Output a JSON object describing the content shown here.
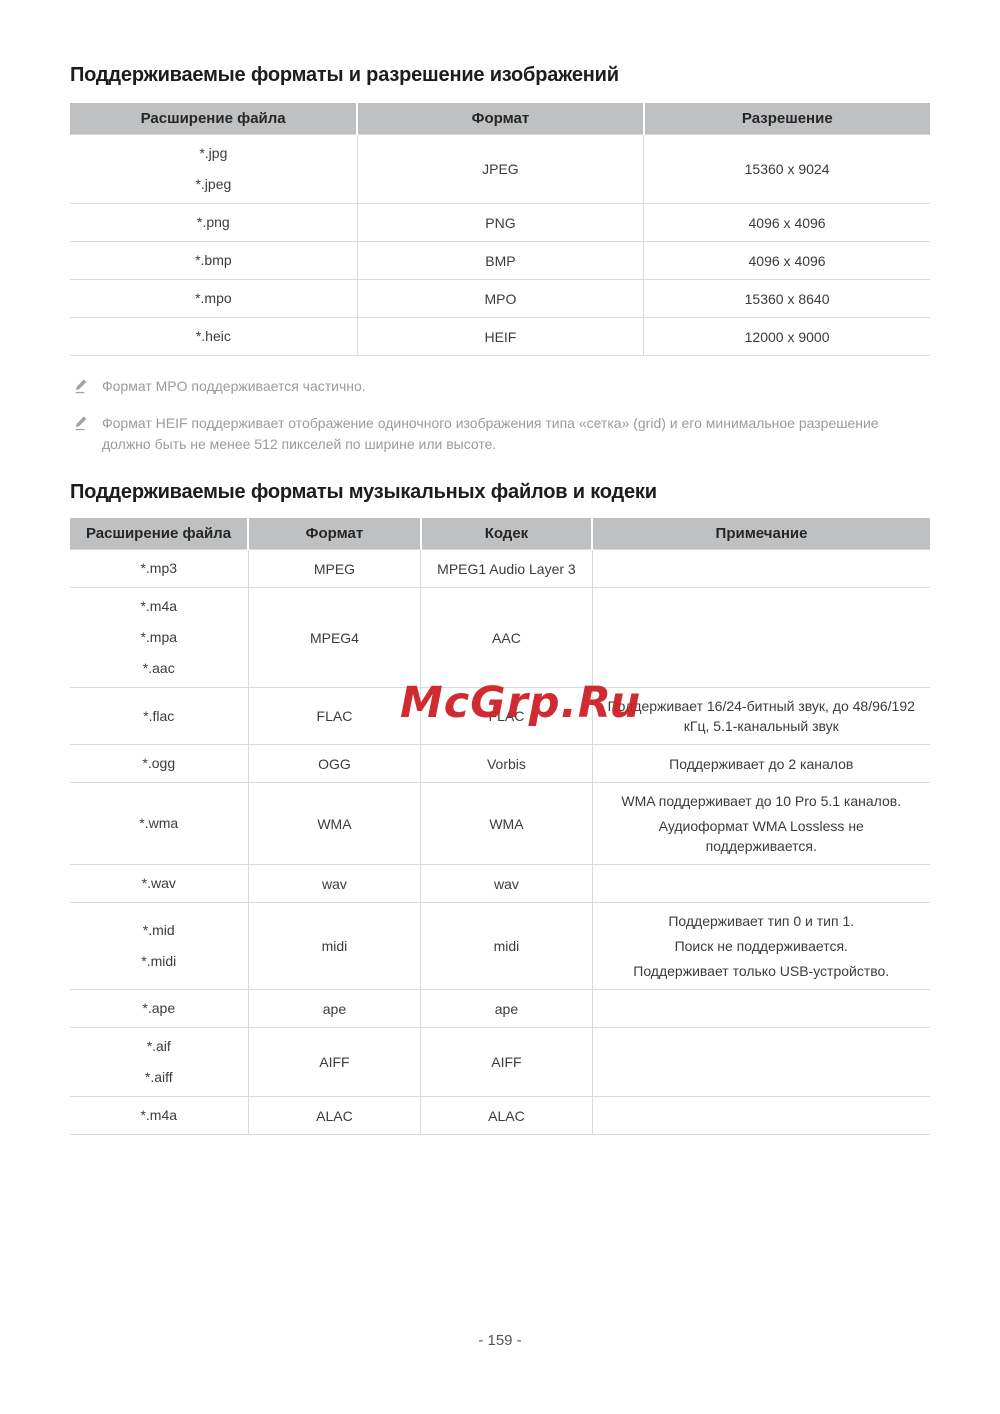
{
  "page": {
    "footer": "- 159 -"
  },
  "watermark": {
    "text": "McGrp.Ru",
    "color": "#ce2026"
  },
  "colors": {
    "table_header_bg": "#bfc0c2",
    "table_border": "#d9dadb",
    "note_text": "#9b9b9b"
  },
  "sections": {
    "images": {
      "title": "Поддерживаемые форматы и разрешение изображений",
      "table": {
        "headers": [
          "Расширение файла",
          "Формат",
          "Разрешение"
        ],
        "note_column": false,
        "rows": [
          {
            "ext": [
              "*.jpg",
              "*.jpeg"
            ],
            "cells": [
              "JPEG",
              "15360 x 9024"
            ]
          },
          {
            "ext": [
              "*.png"
            ],
            "cells": [
              "PNG",
              "4096 x 4096"
            ]
          },
          {
            "ext": [
              "*.bmp"
            ],
            "cells": [
              "BMP",
              "4096 x 4096"
            ]
          },
          {
            "ext": [
              "*.mpo"
            ],
            "cells": [
              "MPO",
              "15360 x 8640"
            ]
          },
          {
            "ext": [
              "*.heic"
            ],
            "cells": [
              "HEIF",
              "12000 x 9000"
            ]
          }
        ]
      },
      "notes": [
        "Формат MPO поддерживается частично.",
        "Формат HEIF поддерживает отображение одиночного изображения типа «сетка» (grid) и его минимальное разрешение должно быть не менее 512 пикселей по ширине или высоте."
      ],
      "note_icon": "pencil-icon"
    },
    "music": {
      "title": "Поддерживаемые форматы музыкальных файлов и кодеки",
      "table": {
        "headers": [
          "Расширение файла",
          "Формат",
          "Кодек",
          "Примечание"
        ],
        "note_column": true,
        "rows": [
          {
            "ext": [
              "*.mp3"
            ],
            "cells": [
              "MPEG",
              "MPEG1 Audio Layer 3"
            ],
            "note": []
          },
          {
            "ext": [
              "*.m4a",
              "*.mpa",
              "*.aac"
            ],
            "cells": [
              "MPEG4",
              "AAC"
            ],
            "note": []
          },
          {
            "ext": [
              "*.flac"
            ],
            "cells": [
              "FLAC",
              "FLAC"
            ],
            "note": [
              "Поддерживает 16/24-битный звук, до 48/96/192 кГц, 5.1-канальный звук"
            ]
          },
          {
            "ext": [
              "*.ogg"
            ],
            "cells": [
              "OGG",
              "Vorbis"
            ],
            "note": [
              "Поддерживает до 2 каналов"
            ]
          },
          {
            "ext": [
              "*.wma"
            ],
            "cells": [
              "WMA",
              "WMA"
            ],
            "note": [
              "WMA поддерживает до 10 Pro 5.1 каналов.",
              "Аудиоформат WMA Lossless не поддерживается."
            ]
          },
          {
            "ext": [
              "*.wav"
            ],
            "cells": [
              "wav",
              "wav"
            ],
            "note": []
          },
          {
            "ext": [
              "*.mid",
              "*.midi"
            ],
            "cells": [
              "midi",
              "midi"
            ],
            "note": [
              "Поддерживает тип 0 и тип 1.",
              "Поиск не поддерживается.",
              "Поддерживает только USB-устройство."
            ]
          },
          {
            "ext": [
              "*.ape"
            ],
            "cells": [
              "ape",
              "ape"
            ],
            "note": []
          },
          {
            "ext": [
              "*.aif",
              "*.aiff"
            ],
            "cells": [
              "AIFF",
              "AIFF"
            ],
            "note": []
          },
          {
            "ext": [
              "*.m4a"
            ],
            "cells": [
              "ALAC",
              "ALAC"
            ],
            "note": []
          }
        ]
      }
    }
  }
}
